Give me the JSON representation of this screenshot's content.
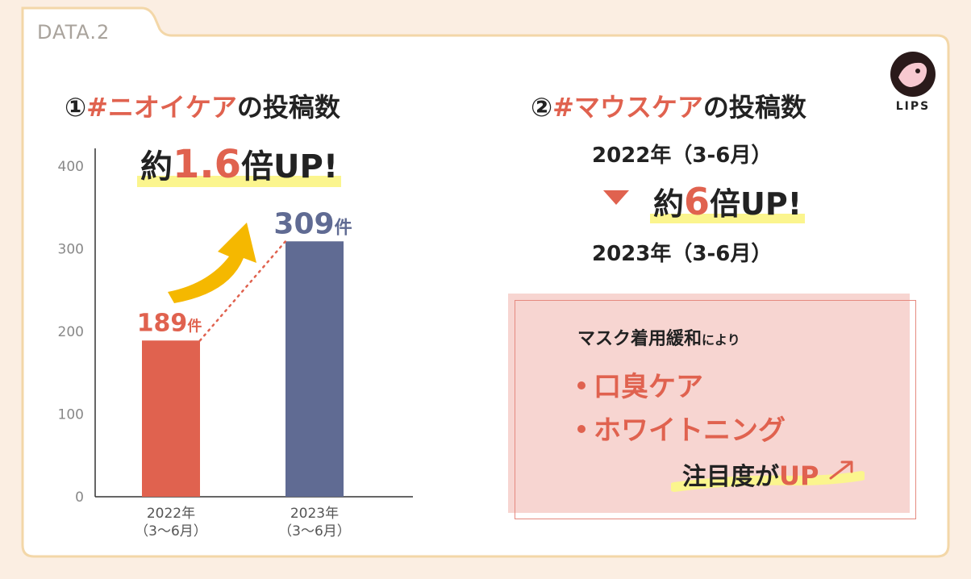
{
  "data_tag": "DATA.2",
  "logo_text": "LIPS",
  "left_panel": {
    "heading_prefix": "①",
    "heading_hashtag": "#ニオイケア",
    "heading_suffix": "の投稿数",
    "callout_pre": "約",
    "callout_num": "1.6",
    "callout_post": "倍UP!"
  },
  "right_panel": {
    "heading_prefix": "②",
    "heading_hashtag": "#マウスケア",
    "heading_suffix": "の投稿数",
    "year_from": "2022年（3-6月）",
    "year_to": "2023年（3-6月）",
    "callout_pre": "約",
    "callout_num": "6",
    "callout_post": "倍UP!",
    "note": {
      "intro_main": "マスク着用緩和",
      "intro_small": "により",
      "bullets": [
        "口臭ケア",
        "ホワイトニング"
      ],
      "ending_main": "注目度が",
      "ending_up": "UP"
    }
  },
  "colors": {
    "bar_2022": "#e0624f",
    "bar_2023": "#606b93",
    "accent": "#e0624f",
    "highlight": "#fbf58e",
    "frame": "#f3d7a8",
    "arrow": "#f5b800"
  },
  "chart_data": {
    "type": "bar",
    "categories": [
      "2022年\n（3〜6月）",
      "2023年\n（3〜6月）"
    ],
    "category_lines": [
      [
        "2022年",
        "（3〜6月）"
      ],
      [
        "2023年",
        "（3〜6月）"
      ]
    ],
    "values": [
      189,
      309
    ],
    "value_labels": [
      "189",
      "309"
    ],
    "value_unit": "件",
    "yticks": [
      0,
      100,
      200,
      300,
      400
    ],
    "ylim": [
      0,
      400
    ],
    "grid": false
  }
}
